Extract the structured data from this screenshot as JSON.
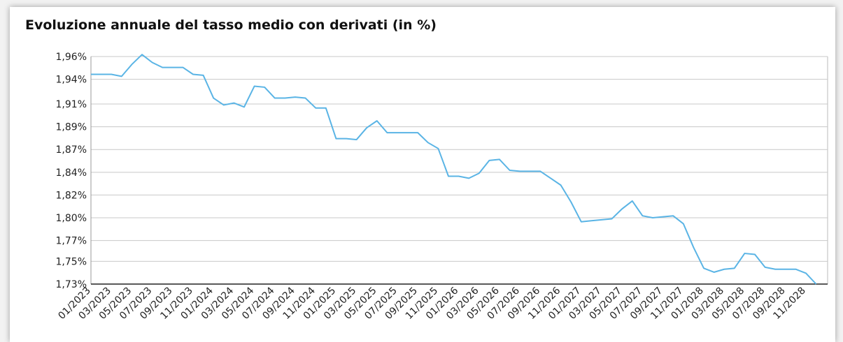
{
  "chart_data": {
    "type": "line",
    "title": "Evoluzione annuale del tasso medio con derivati (in %)",
    "categories": [
      "01/2023",
      null,
      "03/2023",
      null,
      "05/2023",
      null,
      "07/2023",
      null,
      "09/2023",
      null,
      "11/2023",
      null,
      "01/2024",
      null,
      "03/2024",
      null,
      "05/2024",
      null,
      "07/2024",
      null,
      "09/2024",
      null,
      "11/2024",
      null,
      "01/2025",
      null,
      "03/2025",
      null,
      "05/2025",
      null,
      "07/2025",
      null,
      "09/2025",
      null,
      "11/2025",
      null,
      "01/2026",
      null,
      "03/2026",
      null,
      "05/2026",
      null,
      "07/2026",
      null,
      "09/2026",
      null,
      "11/2026",
      null,
      "01/2027",
      null,
      "03/2027",
      null,
      "05/2027",
      null,
      "07/2027",
      null,
      "09/2027",
      null,
      "11/2027",
      null,
      "01/2028",
      null,
      "03/2028",
      null,
      "05/2028",
      null,
      "07/2028",
      null,
      "09/2028",
      null,
      "11/2028",
      null
    ],
    "series": [
      {
        "color": "#5ab4e5",
        "values": [
          1.942,
          1.942,
          1.942,
          1.94,
          1.952,
          1.962,
          1.954,
          1.949,
          1.949,
          1.949,
          1.942,
          1.941,
          1.918,
          1.911,
          1.913,
          1.909,
          1.93,
          1.929,
          1.918,
          1.918,
          1.919,
          1.918,
          1.908,
          1.908,
          1.877,
          1.877,
          1.876,
          1.888,
          1.895,
          1.883,
          1.883,
          1.883,
          1.883,
          1.873,
          1.867,
          1.839,
          1.839,
          1.837,
          1.842,
          1.855,
          1.856,
          1.845,
          1.844,
          1.844,
          1.844,
          1.837,
          1.83,
          1.813,
          1.793,
          1.794,
          1.795,
          1.796,
          1.806,
          1.814,
          1.799,
          1.797,
          1.798,
          1.799,
          1.791,
          1.767,
          1.746,
          1.742,
          1.745,
          1.746,
          1.761,
          1.76,
          1.747,
          1.745,
          1.745,
          1.745,
          1.741,
          1.73
        ]
      }
    ],
    "ylim": [
      1.73,
      1.96
    ],
    "yticks": [
      {
        "value": 1.73,
        "label": "1,73%"
      },
      {
        "value": 1.753,
        "label": "1,75%"
      },
      {
        "value": 1.774,
        "label": "1,77%"
      },
      {
        "value": 1.797,
        "label": "1,80%"
      },
      {
        "value": 1.82,
        "label": "1,82%"
      },
      {
        "value": 1.843,
        "label": "1,84%"
      },
      {
        "value": 1.866,
        "label": "1,87%"
      },
      {
        "value": 1.889,
        "label": "1,89%"
      },
      {
        "value": 1.912,
        "label": "1,91%"
      },
      {
        "value": 1.937,
        "label": "1,94%"
      },
      {
        "value": 1.96,
        "label": "1,96%"
      }
    ],
    "grid": true
  }
}
